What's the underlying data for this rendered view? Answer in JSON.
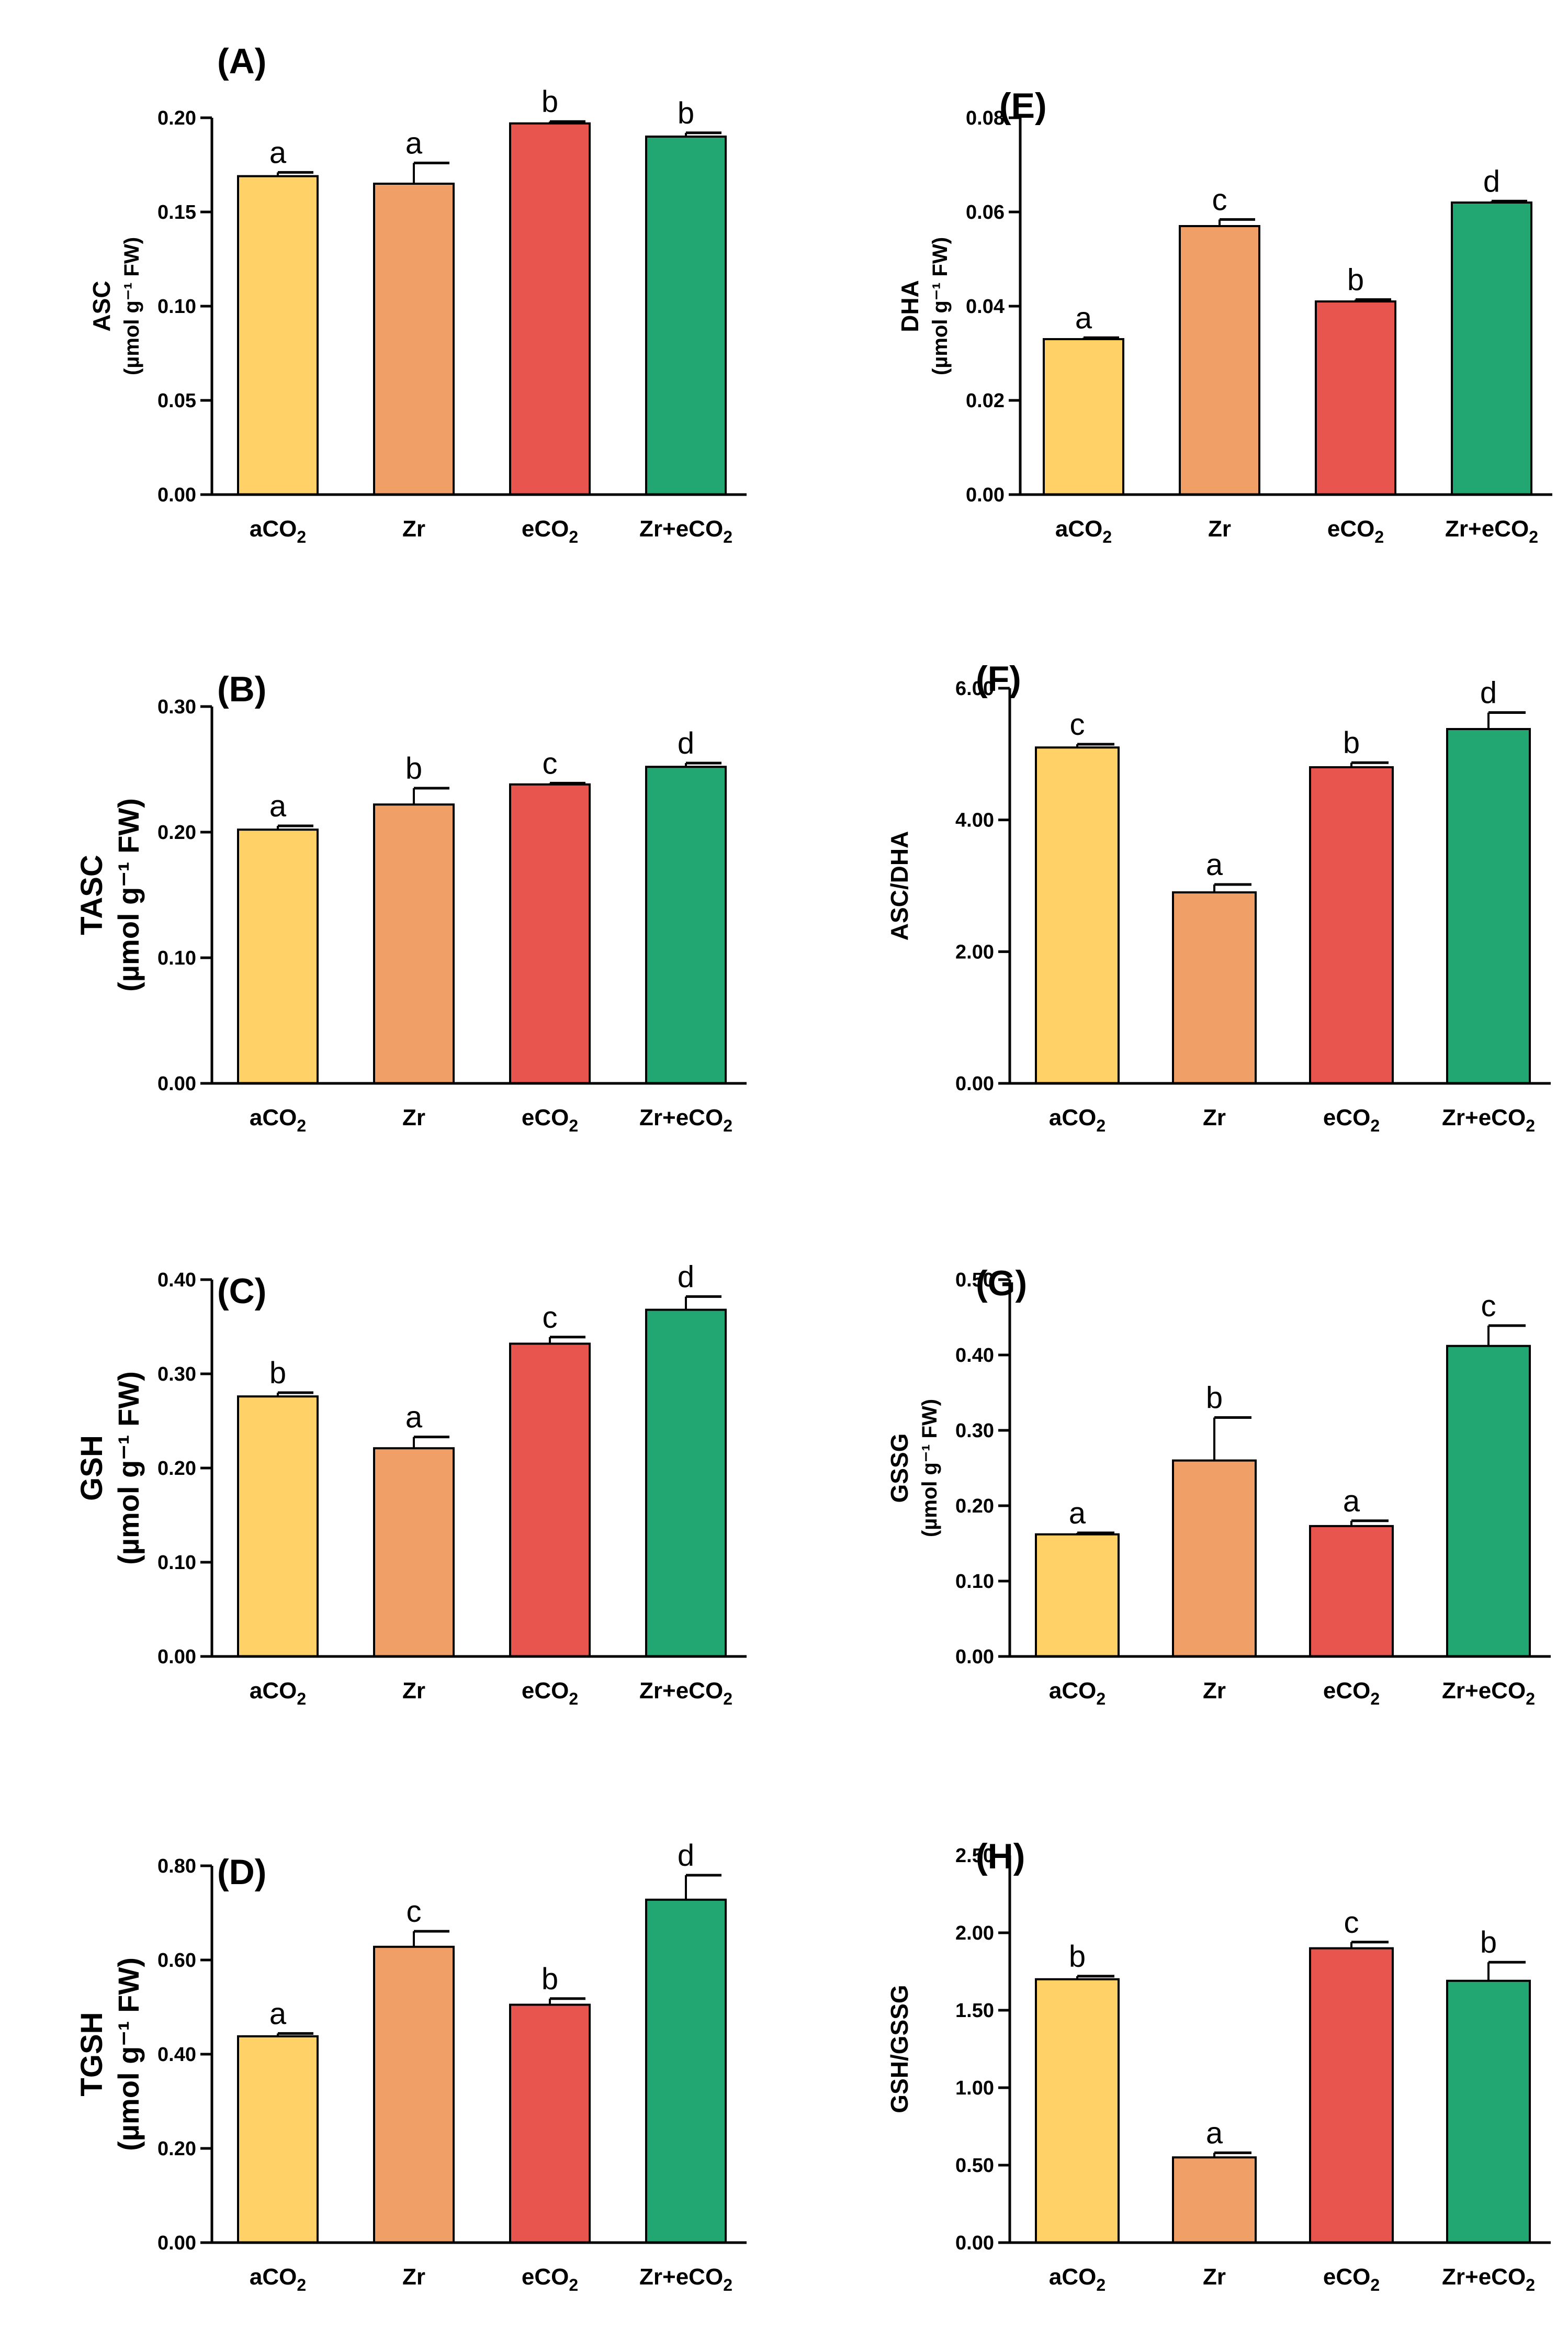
{
  "colors": [
    "#FFD166",
    "#F0A066",
    "#E8554E",
    "#22A672"
  ],
  "chart_data": [
    {
      "type": "bar",
      "title": "(A)",
      "ylabel": "ASC",
      "yunits": "(µmol g⁻¹ FW)",
      "categories": [
        "aCO2",
        "Zr",
        "eCO2",
        "Zr+eCO2"
      ],
      "values": [
        0.169,
        0.165,
        0.197,
        0.19
      ],
      "errors": [
        0.002,
        0.011,
        0.001,
        0.002
      ],
      "letters": [
        "a",
        "a",
        "b",
        "b"
      ],
      "ylim": [
        0,
        0.2
      ],
      "yticks": [
        0,
        0.05,
        0.1,
        0.15,
        0.2
      ],
      "ytick_labels": [
        "0.00",
        "0.05",
        "0.10",
        "0.15",
        "0.20"
      ]
    },
    {
      "type": "bar",
      "title": "(B)",
      "ylabel": "TASC",
      "yunits": "(µmol g⁻¹ FW)",
      "categories": [
        "aCO2",
        "Zr",
        "eCO2",
        "Zr+eCO2"
      ],
      "values": [
        0.202,
        0.222,
        0.238,
        0.252
      ],
      "errors": [
        0.003,
        0.013,
        0.001,
        0.003
      ],
      "letters": [
        "a",
        "b",
        "c",
        "d"
      ],
      "ylim": [
        0,
        0.3
      ],
      "yticks": [
        0,
        0.1,
        0.2,
        0.3
      ],
      "ytick_labels": [
        "0.00",
        "0.10",
        "0.20",
        "0.30"
      ]
    },
    {
      "type": "bar",
      "title": "(C)",
      "ylabel": "GSH",
      "yunits": "(µmol g⁻¹ FW)",
      "categories": [
        "aCO2",
        "Zr",
        "eCO2",
        "Zr+eCO2"
      ],
      "values": [
        0.276,
        0.221,
        0.332,
        0.368
      ],
      "errors": [
        0.004,
        0.012,
        0.007,
        0.014
      ],
      "letters": [
        "b",
        "a",
        "c",
        "d"
      ],
      "ylim": [
        0,
        0.4
      ],
      "yticks": [
        0,
        0.1,
        0.2,
        0.3,
        0.4
      ],
      "ytick_labels": [
        "0.00",
        "0.10",
        "0.20",
        "0.30",
        "0.40"
      ]
    },
    {
      "type": "bar",
      "title": "(D)",
      "ylabel": "TGSH",
      "yunits": "(µmol g⁻¹ FW)",
      "categories": [
        "aCO2",
        "Zr",
        "eCO2",
        "Zr+eCO2"
      ],
      "values": [
        0.438,
        0.628,
        0.505,
        0.728
      ],
      "errors": [
        0.006,
        0.033,
        0.013,
        0.052
      ],
      "letters": [
        "a",
        "c",
        "b",
        "d"
      ],
      "ylim": [
        0,
        0.8
      ],
      "yticks": [
        0,
        0.2,
        0.4,
        0.6,
        0.8
      ],
      "ytick_labels": [
        "0.00",
        "0.20",
        "0.40",
        "0.60",
        "0.80"
      ]
    },
    {
      "type": "bar",
      "title": "(E)",
      "ylabel": "DHA",
      "yunits": "(µmol g⁻¹ FW)",
      "categories": [
        "aCO2",
        "Zr",
        "eCO2",
        "Zr+eCO2"
      ],
      "values": [
        0.033,
        0.057,
        0.041,
        0.062
      ],
      "errors": [
        0.0003,
        0.0014,
        0.0004,
        0.0003
      ],
      "letters": [
        "a",
        "c",
        "b",
        "d"
      ],
      "ylim": [
        0,
        0.08
      ],
      "yticks": [
        0,
        0.02,
        0.04,
        0.06,
        0.08
      ],
      "ytick_labels": [
        "0.00",
        "0.02",
        "0.04",
        "0.06",
        "0.08"
      ]
    },
    {
      "type": "bar",
      "title": "(F)",
      "ylabel": "ASC/DHA",
      "yunits": "",
      "categories": [
        "aCO2",
        "Zr",
        "eCO2",
        "Zr+eCO2"
      ],
      "values": [
        5.1,
        2.9,
        4.8,
        5.38
      ],
      "errors": [
        0.05,
        0.12,
        0.07,
        0.25
      ],
      "letters": [
        "c",
        "a",
        "b",
        "d"
      ],
      "ylim": [
        0,
        6.0
      ],
      "yticks": [
        0,
        2.0,
        4.0,
        6.0
      ],
      "ytick_labels": [
        "0.00",
        "2.00",
        "4.00",
        "6.00"
      ]
    },
    {
      "type": "bar",
      "title": "(G)",
      "ylabel": "GSSG",
      "yunits": "(µmol g⁻¹ FW)",
      "categories": [
        "aCO2",
        "Zr",
        "eCO2",
        "Zr+eCO2"
      ],
      "values": [
        0.162,
        0.26,
        0.173,
        0.412
      ],
      "errors": [
        0.002,
        0.057,
        0.007,
        0.027
      ],
      "letters": [
        "a",
        "b",
        "a",
        "c"
      ],
      "ylim": [
        0,
        0.5
      ],
      "yticks": [
        0,
        0.1,
        0.2,
        0.3,
        0.4,
        0.5
      ],
      "ytick_labels": [
        "0.00",
        "0.10",
        "0.20",
        "0.30",
        "0.40",
        "0.50"
      ]
    },
    {
      "type": "bar",
      "title": "(H)",
      "ylabel": "GSH/GSSG",
      "yunits": "",
      "categories": [
        "aCO2",
        "Zr",
        "eCO2",
        "Zr+eCO2"
      ],
      "values": [
        1.7,
        0.55,
        1.9,
        1.69
      ],
      "errors": [
        0.02,
        0.03,
        0.04,
        0.12
      ],
      "letters": [
        "b",
        "a",
        "c",
        "b"
      ],
      "ylim": [
        0,
        2.5
      ],
      "yticks": [
        0,
        0.5,
        1.0,
        1.5,
        2.0,
        2.5
      ],
      "ytick_labels": [
        "0.00",
        "0.50",
        "1.00",
        "1.50",
        "2.00",
        "2.50"
      ]
    }
  ]
}
